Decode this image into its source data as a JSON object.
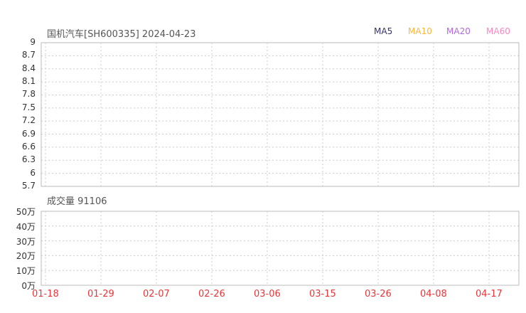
{
  "header": {
    "title": "国机汽车[SH600335] 2024-04-23"
  },
  "legend": [
    {
      "label": "MA5",
      "color": "#333366"
    },
    {
      "label": "MA10",
      "color": "#f5b942"
    },
    {
      "label": "MA20",
      "color": "#b06ad6"
    },
    {
      "label": "MA60",
      "color": "#f08ac0"
    }
  ],
  "colors": {
    "up": "#e4393c",
    "down": "#18a63d",
    "grid": "#cccccc",
    "axis_text": "#333333",
    "date_text": "#e4393c"
  },
  "volume": {
    "title": "成交量 91106"
  },
  "chart_data": [
    {
      "type": "candlestick",
      "title": "国机汽车[SH600335] 2024-04-23",
      "yticks": [
        "9",
        "8.7",
        "8.4",
        "8.1",
        "7.8",
        "7.5",
        "7.2",
        "6.9",
        "6.6",
        "6.3",
        "6",
        "5.7"
      ],
      "ylim": [
        5.7,
        9.0
      ],
      "xticks": [
        "01-18",
        "01-29",
        "02-07",
        "02-26",
        "03-06",
        "03-15",
        "03-26",
        "04-08",
        "04-17"
      ],
      "grid": true,
      "series_names": [
        "MA5",
        "MA10",
        "MA20",
        "MA60"
      ]
    },
    {
      "type": "bar",
      "title": "成交量 91106",
      "yticks": [
        "50万",
        "40万",
        "30万",
        "20万",
        "10万",
        "0万"
      ],
      "ylim": [
        0,
        50
      ],
      "xticks": [
        "01-18",
        "01-29",
        "02-07",
        "02-26",
        "03-06",
        "03-15",
        "03-26",
        "04-08",
        "04-17"
      ],
      "grid": true
    }
  ]
}
